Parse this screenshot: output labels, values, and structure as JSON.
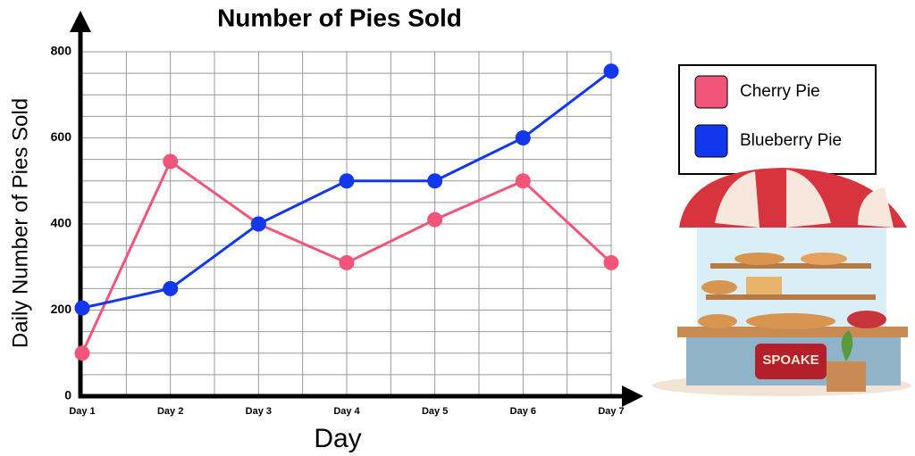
{
  "chart_data": {
    "type": "line",
    "title": "Number of Pies Sold",
    "x_label": "Day",
    "y_label": "Daily Number of Pies Sold",
    "categories": [
      "Day 1",
      "Day 2",
      "Day 3",
      "Day 4",
      "Day 5",
      "Day 6",
      "Day 7"
    ],
    "series": [
      {
        "name": "Cherry Pie",
        "color": "#f2557a",
        "values": [
          100,
          545,
          400,
          310,
          410,
          500,
          310
        ]
      },
      {
        "name": "Blueberry Pie",
        "color": "#1237ec",
        "values": [
          205,
          250,
          400,
          500,
          500,
          600,
          755
        ]
      }
    ],
    "ylim": [
      0,
      800
    ],
    "yticks": [
      0,
      200,
      400,
      600,
      800
    ],
    "grid": true,
    "legend": "right"
  },
  "illustration": {
    "sign": "SPOAKE"
  }
}
